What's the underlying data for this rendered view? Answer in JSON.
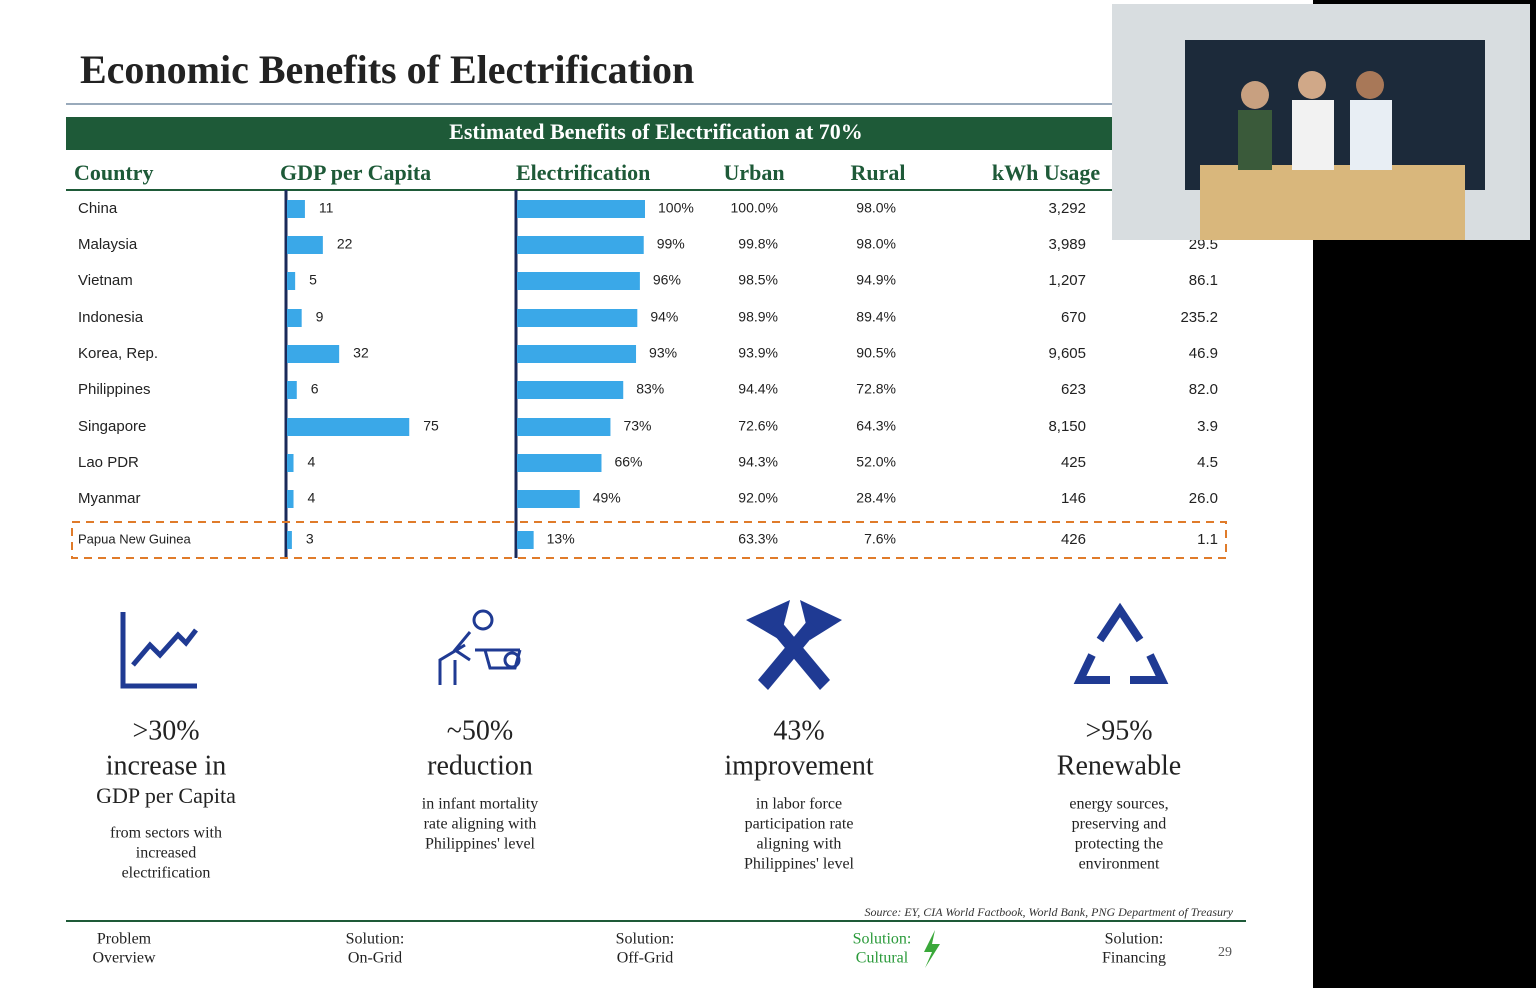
{
  "slide": {
    "title": "Economic Benefits of Electrification",
    "table": {
      "banner": "Estimated Benefits of Electrification at 70%",
      "headers": [
        "Country",
        "GDP per Capita",
        "Electrification",
        "Urban",
        "Rural",
        "kWh Usage"
      ],
      "rows": [
        {
          "country": "China",
          "gdp": 11,
          "electrification": 100,
          "electrification_label": "100%",
          "urban": "100.0%",
          "rural": "98.0%",
          "kwh": "3,292",
          "last": null
        },
        {
          "country": "Malaysia",
          "gdp": 22,
          "electrification": 99,
          "electrification_label": "99%",
          "urban": "99.8%",
          "rural": "98.0%",
          "kwh": "3,989",
          "last": "29.5"
        },
        {
          "country": "Vietnam",
          "gdp": 5,
          "electrification": 96,
          "electrification_label": "96%",
          "urban": "98.5%",
          "rural": "94.9%",
          "kwh": "1,207",
          "last": "86.1"
        },
        {
          "country": "Indonesia",
          "gdp": 9,
          "electrification": 94,
          "electrification_label": "94%",
          "urban": "98.9%",
          "rural": "89.4%",
          "kwh": "670",
          "last": "235.2"
        },
        {
          "country": "Korea, Rep.",
          "gdp": 32,
          "electrification": 93,
          "electrification_label": "93%",
          "urban": "93.9%",
          "rural": "90.5%",
          "kwh": "9,605",
          "last": "46.9"
        },
        {
          "country": "Philippines",
          "gdp": 6,
          "electrification": 83,
          "electrification_label": "83%",
          "urban": "94.4%",
          "rural": "72.8%",
          "kwh": "623",
          "last": "82.0"
        },
        {
          "country": "Singapore",
          "gdp": 75,
          "electrification": 73,
          "electrification_label": "73%",
          "urban": "72.6%",
          "rural": "64.3%",
          "kwh": "8,150",
          "last": "3.9"
        },
        {
          "country": "Lao PDR",
          "gdp": 4,
          "electrification": 66,
          "electrification_label": "66%",
          "urban": "94.3%",
          "rural": "52.0%",
          "kwh": "425",
          "last": "4.5"
        },
        {
          "country": "Myanmar",
          "gdp": 4,
          "electrification": 49,
          "electrification_label": "49%",
          "urban": "92.0%",
          "rural": "28.4%",
          "kwh": "146",
          "last": "26.0"
        },
        {
          "country": "Papua New Guinea",
          "gdp": 3,
          "electrification": 13,
          "electrification_label": "13%",
          "urban": "63.3%",
          "rural": "7.6%",
          "kwh": "426",
          "last": "1.1"
        }
      ]
    },
    "benefits": [
      {
        "stat": ">30%",
        "headline": "increase in",
        "subhead": "GDP per Capita",
        "lines": [
          "from sectors with",
          "increased",
          "electrification"
        ]
      },
      {
        "stat": "~50%",
        "headline": "reduction",
        "lines": [
          "in infant mortality",
          "rate aligning with",
          "Philippines' level"
        ]
      },
      {
        "stat": "43%",
        "headline": "improvement",
        "lines": [
          "in labor force",
          "participation rate",
          "aligning with",
          "Philippines' level"
        ]
      },
      {
        "stat": ">95%",
        "headline": "Renewable",
        "lines": [
          "energy sources,",
          "preserving and",
          "protecting the",
          "environment"
        ]
      }
    ],
    "source": "Source: EY, CIA World Factbook, World Bank, PNG Department of Treasury",
    "nav": [
      [
        "Problem",
        "Overview"
      ],
      [
        "Solution:",
        "On-Grid"
      ],
      [
        "Solution:",
        "Off-Grid"
      ],
      [
        "Solution:",
        "Cultural"
      ],
      [
        "Solution:",
        "Financing"
      ]
    ],
    "page_number": "29"
  }
}
